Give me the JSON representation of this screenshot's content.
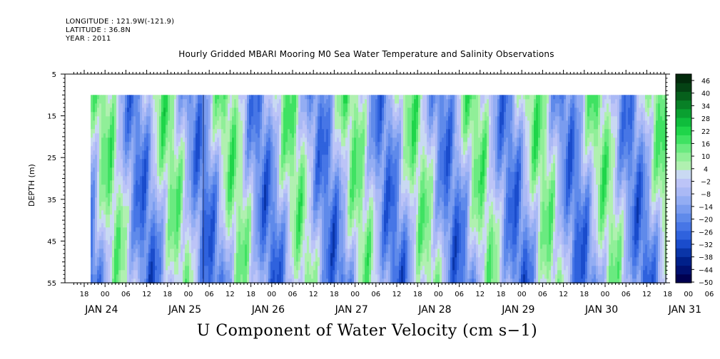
{
  "header": {
    "longitude": "LONGITUDE : 121.9W(-121.9)",
    "latitude": "LATITUDE : 36.8N",
    "year": "YEAR : 2011",
    "title": "Hourly Gridded MBARI Mooring M0 Sea Water Temperature and Salinity Observations"
  },
  "chart_data": {
    "type": "heatmap",
    "title": "U Component of Water Velocity (cm s−1)",
    "ylabel": "DEPTH (m)",
    "y_reversed": true,
    "ylim": [
      5,
      55
    ],
    "y_ticks": [
      5,
      15,
      25,
      35,
      45,
      55
    ],
    "data_depth_range": [
      10,
      55
    ],
    "x_hour_ticks": [
      "18",
      "00",
      "06",
      "12",
      "18",
      "00",
      "06",
      "12",
      "18",
      "00",
      "06",
      "12",
      "18",
      "00",
      "06",
      "12",
      "18",
      "00",
      "06",
      "12",
      "18",
      "00",
      "06",
      "12",
      "18",
      "00",
      "06",
      "12",
      "18",
      "00",
      "06",
      "12"
    ],
    "x_day_labels": [
      "JAN 24",
      "JAN 25",
      "JAN 26",
      "JAN 27",
      "JAN 28",
      "JAN 29",
      "JAN 30",
      "JAN 31"
    ],
    "colorbar": {
      "labels": [
        "46",
        "40",
        "34",
        "28",
        "22",
        "16",
        "10",
        "4",
        "−2",
        "−8",
        "−14",
        "−20",
        "−26",
        "−32",
        "−38",
        "−44",
        "−50"
      ],
      "range": [
        -50,
        50
      ],
      "colors": [
        "#000050",
        "#001070",
        "#00208a",
        "#0a35a8",
        "#1a4ccc",
        "#2f62dd",
        "#4776e6",
        "#5f8aea",
        "#7a9cef",
        "#93adf3",
        "#aab9f5",
        "#bcc4f7",
        "#c9d9f2",
        "#b0f0b0",
        "#90ef98",
        "#6aea80",
        "#3fe262",
        "#1fd54a",
        "#0fbd3c",
        "#0aa030",
        "#088026",
        "#06601c",
        "#044214",
        "#022a0c"
      ]
    }
  }
}
